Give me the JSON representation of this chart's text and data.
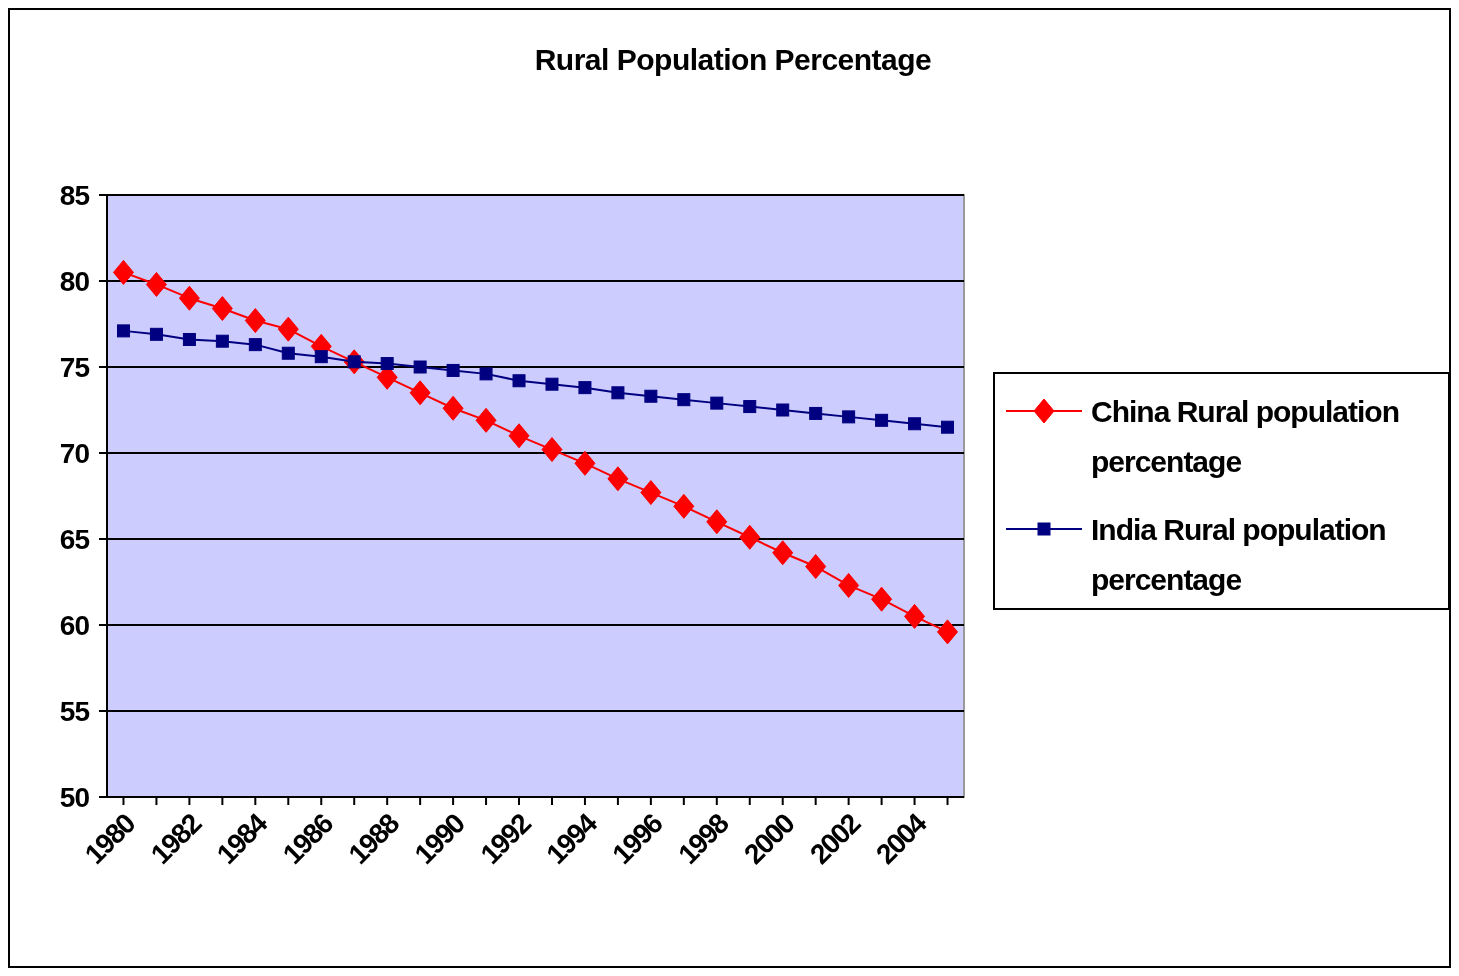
{
  "chart_data": {
    "type": "line",
    "title": "Rural Population Percentage",
    "categories": [
      "1980",
      null,
      "1982",
      null,
      "1984",
      null,
      "1986",
      null,
      "1988",
      null,
      "1990",
      null,
      "1992",
      null,
      "1994",
      null,
      "1996",
      null,
      "1998",
      null,
      "2000",
      null,
      "2002",
      null,
      "2004",
      null
    ],
    "series": [
      {
        "name": "China Rural population percentage",
        "color": "#ff0000",
        "marker": "diamond",
        "values": [
          80.5,
          79.8,
          79.0,
          78.4,
          77.7,
          77.2,
          76.2,
          75.3,
          74.4,
          73.5,
          72.6,
          71.9,
          71.0,
          70.2,
          69.4,
          68.5,
          67.7,
          66.9,
          66.0,
          65.1,
          64.2,
          63.4,
          62.3,
          61.5,
          60.5,
          59.6
        ]
      },
      {
        "name": "India Rural population percentage",
        "color": "#000080",
        "marker": "square",
        "values": [
          77.1,
          76.9,
          76.6,
          76.5,
          76.3,
          75.8,
          75.6,
          75.3,
          75.2,
          75.0,
          74.8,
          74.6,
          74.2,
          74.0,
          73.8,
          73.5,
          73.3,
          73.1,
          72.9,
          72.7,
          72.5,
          72.3,
          72.1,
          71.9,
          71.7,
          71.5
        ]
      }
    ],
    "ylim": [
      50,
      85
    ],
    "yticks": [
      50,
      55,
      60,
      65,
      70,
      75,
      80,
      85
    ],
    "grid": "y",
    "legend": "right"
  }
}
